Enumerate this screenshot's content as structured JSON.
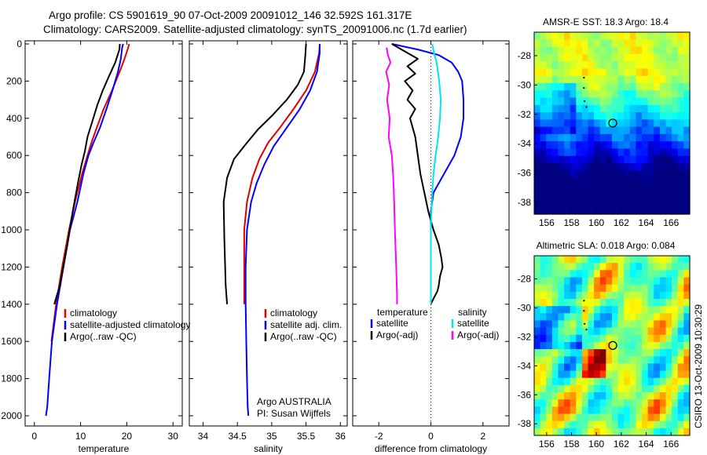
{
  "header": {
    "line1": "Argo profile: CS 5901619_90 07-Oct-2009 20091012_146 32.592S 161.317E",
    "line2": "Climatology: CARS2009. Satellite-adjusted climatology: synTS_20091006.nc (1.7d earlier)"
  },
  "colors": {
    "climatology": "#e00000",
    "satellite": "#0000ff",
    "argo": "#000000",
    "sal_satellite": "#00e5ee",
    "sal_argo": "#ff00ff"
  },
  "chart_data": [
    {
      "type": "line",
      "id": "temperature",
      "xlabel": "temperature",
      "ylabel": "",
      "xlim": [
        -2,
        32
      ],
      "ylim": [
        2050,
        0
      ],
      "xticks": [
        0,
        10,
        20,
        30
      ],
      "yticks": [
        0,
        200,
        400,
        600,
        800,
        1000,
        1200,
        1400,
        1600,
        1800,
        2000
      ],
      "legend_entries": [
        "climatology",
        "satellite-adjusted climatology",
        "Argo(..raw -QC)"
      ],
      "series": [
        {
          "name": "climatology",
          "color": "#e00000",
          "x": [
            20.5,
            20.3,
            19.5,
            18.6,
            16.8,
            15.0,
            13.5,
            12.5,
            11.5,
            10.3,
            8.8,
            7.5,
            6.0,
            4.7,
            3.7
          ],
          "y": [
            0,
            20,
            80,
            140,
            250,
            350,
            450,
            520,
            600,
            700,
            850,
            1000,
            1200,
            1400,
            1600
          ]
        },
        {
          "name": "satellite-adjusted climatology",
          "color": "#0000ff",
          "x": [
            19.2,
            19.0,
            18.7,
            18.1,
            16.9,
            15.6,
            14.2,
            12.8,
            11.7,
            10.6,
            9.3,
            7.7,
            6.3,
            4.9,
            3.8,
            3.2,
            2.8,
            2.5
          ],
          "y": [
            0,
            20,
            80,
            150,
            250,
            350,
            450,
            530,
            600,
            700,
            850,
            1000,
            1200,
            1400,
            1600,
            1800,
            1950,
            2000
          ]
        },
        {
          "name": "Argo(..raw -QC)",
          "color": "#000000",
          "x": [
            18.5,
            18.4,
            17.5,
            16.2,
            14.8,
            13.6,
            12.5,
            11.5,
            10.9,
            10.2,
            9.4,
            8.3,
            7.0,
            5.5,
            4.3
          ],
          "y": [
            0,
            30,
            100,
            170,
            250,
            330,
            420,
            500,
            580,
            650,
            750,
            900,
            1100,
            1300,
            1400
          ]
        }
      ]
    },
    {
      "type": "line",
      "id": "salinity",
      "xlabel": "salinity",
      "ylabel": "",
      "xlim": [
        33.8,
        36.1
      ],
      "ylim": [
        2050,
        0
      ],
      "xticks": [
        34,
        34.5,
        35,
        35.5,
        36
      ],
      "xticklabels": [
        "34",
        "34.5",
        "35",
        "35.5",
        "36"
      ],
      "legend_entries": [
        "climatology",
        "satellite adj. clim.",
        "Argo(..raw -QC)"
      ],
      "annotation": [
        "Argo AUSTRALIA",
        "PI: Susan Wijffels"
      ],
      "series": [
        {
          "name": "climatology",
          "color": "#e00000",
          "x": [
            35.7,
            35.69,
            35.63,
            35.5,
            35.32,
            35.12,
            34.95,
            34.82,
            34.72,
            34.64,
            34.6,
            34.6,
            34.6
          ],
          "y": [
            0,
            50,
            150,
            250,
            350,
            450,
            530,
            620,
            720,
            850,
            1000,
            1200,
            1400
          ]
        },
        {
          "name": "satellite adj. clim.",
          "color": "#0000ff",
          "x": [
            35.7,
            35.7,
            35.66,
            35.56,
            35.41,
            35.22,
            35.03,
            34.89,
            34.78,
            34.7,
            34.64,
            34.62,
            34.62,
            34.63,
            34.64,
            34.65,
            34.66
          ],
          "y": [
            0,
            50,
            150,
            250,
            350,
            450,
            550,
            650,
            750,
            850,
            1000,
            1200,
            1400,
            1600,
            1800,
            1950,
            2000
          ]
        },
        {
          "name": "Argo(..raw -QC)",
          "color": "#000000",
          "x": [
            35.5,
            35.49,
            35.47,
            35.38,
            35.22,
            35.02,
            34.8,
            34.62,
            34.45,
            34.35,
            34.3,
            34.31,
            34.33,
            34.35
          ],
          "y": [
            0,
            60,
            150,
            220,
            300,
            380,
            460,
            540,
            620,
            720,
            850,
            1050,
            1300,
            1400
          ]
        }
      ]
    },
    {
      "type": "line",
      "id": "difference",
      "xlabel": "difference from climatology",
      "ylabel": "",
      "xlim": [
        -3,
        3
      ],
      "ylim": [
        2050,
        0
      ],
      "xticks": [
        -2,
        0,
        2
      ],
      "legend_titles": [
        "temperature",
        "salinity"
      ],
      "legend_entries": [
        "satellite",
        "Argo(-adj)",
        "satellite",
        "Argo(-adj)"
      ],
      "series": [
        {
          "name": "satellite",
          "group": "temperature",
          "color": "#0000ff",
          "x": [
            -1.5,
            -0.5,
            0.3,
            0.8,
            1.05,
            1.2,
            1.25,
            1.25,
            1.15,
            0.9,
            0.5,
            0.1,
            0.0,
            0.0
          ],
          "y": [
            0,
            30,
            60,
            100,
            150,
            200,
            300,
            400,
            500,
            600,
            700,
            800,
            900,
            1000
          ]
        },
        {
          "name": "Argo(-adj)",
          "group": "temperature",
          "color": "#000000",
          "x": [
            -1.5,
            -1.0,
            -0.5,
            -0.9,
            -0.6,
            -1.0,
            -0.7,
            -0.9,
            -0.6,
            -0.8,
            -0.7,
            -0.6,
            -0.5,
            -0.4,
            -0.25,
            -0.1,
            0.1,
            0.3,
            0.4,
            0.45,
            0.35,
            0.3,
            0.25,
            0.1,
            0.0
          ],
          "y": [
            0,
            40,
            80,
            120,
            160,
            200,
            250,
            300,
            350,
            400,
            450,
            500,
            600,
            700,
            800,
            900,
            1000,
            1080,
            1150,
            1200,
            1250,
            1300,
            1330,
            1370,
            1400
          ]
        },
        {
          "name": "satellite",
          "group": "salinity",
          "color": "#00e5ee",
          "x": [
            0.05,
            0.12,
            0.22,
            0.32,
            0.38,
            0.35,
            0.28,
            0.18,
            0.1,
            0.05,
            0.02,
            0.0,
            0.0,
            0.0
          ],
          "y": [
            0,
            50,
            100,
            200,
            300,
            400,
            500,
            600,
            700,
            800,
            900,
            1000,
            1200,
            1400
          ]
        },
        {
          "name": "Argo(-adj)",
          "group": "salinity",
          "color": "#ff00ff",
          "x": [
            -1.7,
            -1.65,
            -1.55,
            -1.72,
            -1.6,
            -1.68,
            -1.58,
            -1.62,
            -1.5,
            -1.45,
            -1.42,
            -1.4,
            -1.38,
            -1.33,
            -1.3,
            -1.3
          ],
          "y": [
            20,
            60,
            100,
            150,
            220,
            300,
            400,
            500,
            600,
            700,
            800,
            900,
            1000,
            1200,
            1350,
            1400
          ]
        }
      ]
    },
    {
      "type": "heatmap",
      "id": "sst-map",
      "title": "AMSR-E SST: 18.3 Argo: 18.4",
      "xlim": [
        155,
        167.5
      ],
      "ylim": [
        -38.8,
        -26.4
      ],
      "xticks": [
        156,
        158,
        160,
        162,
        164,
        166
      ],
      "yticks": [
        -28,
        -30,
        -32,
        -34,
        -36,
        -38
      ],
      "argo_position": {
        "lon": 161.317,
        "lat": -32.592
      },
      "track": [
        {
          "lon": 159.0,
          "lat": -29.5
        },
        {
          "lon": 159.0,
          "lat": -30.2
        },
        {
          "lon": 159.05,
          "lat": -31.1
        },
        {
          "lon": 159.2,
          "lat": -31.5
        }
      ]
    },
    {
      "type": "heatmap",
      "id": "sla-map",
      "title": "Altimetric SLA: 0.018 Argo: 0.084",
      "xlim": [
        155,
        167.5
      ],
      "ylim": [
        -38.8,
        -26.4
      ],
      "xticks": [
        156,
        158,
        160,
        162,
        164,
        166
      ],
      "yticks": [
        -28,
        -30,
        -32,
        -34,
        -36,
        -38
      ],
      "argo_position": {
        "lon": 161.317,
        "lat": -32.592
      },
      "track": [
        {
          "lon": 159.0,
          "lat": -29.5
        },
        {
          "lon": 159.0,
          "lat": -30.2
        },
        {
          "lon": 159.05,
          "lat": -31.1
        },
        {
          "lon": 159.2,
          "lat": -31.5
        }
      ]
    }
  ],
  "side_label": "CSIRO 13-Oct-2009 10:30:29"
}
